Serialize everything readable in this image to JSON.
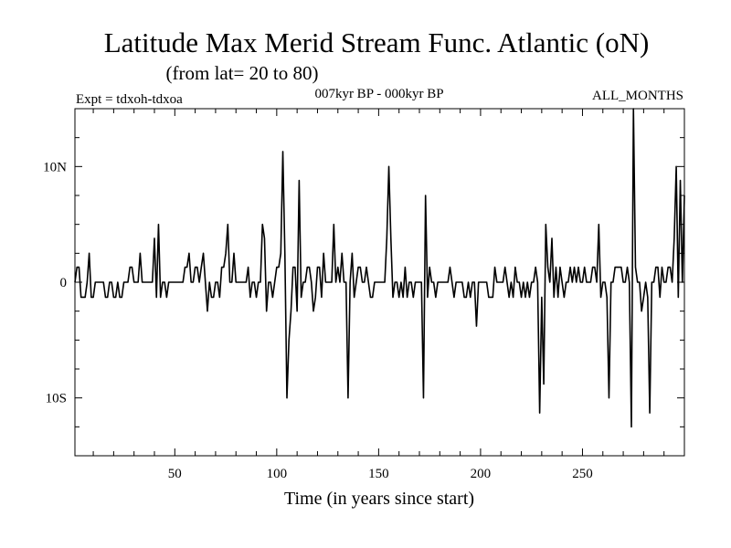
{
  "chart_data": {
    "type": "line",
    "title": "Latitude Max Merid Stream Func. Atlantic (oN)",
    "subtitle": "(from lat= 20 to 80)",
    "header_left": "Expt = tdxoh-tdxoa",
    "header_center": "007kyr BP - 000kyr BP",
    "header_right": "ALL_MONTHS",
    "xlabel": "Time (in years since start)",
    "ylabel": "",
    "xlim": [
      1,
      300
    ],
    "ylim": [
      -15,
      15
    ],
    "grid": false,
    "legend": "none",
    "xticks": [
      {
        "value": 50,
        "label": "50"
      },
      {
        "value": 100,
        "label": "100"
      },
      {
        "value": 150,
        "label": "150"
      },
      {
        "value": 200,
        "label": "200"
      },
      {
        "value": 250,
        "label": "250"
      }
    ],
    "yticks": [
      {
        "value": 10,
        "label": "10N"
      },
      {
        "value": 0,
        "label": "0"
      },
      {
        "value": -10,
        "label": "10S"
      }
    ],
    "series": [
      {
        "color": "#000000",
        "points": [
          [
            1,
            0
          ],
          [
            2,
            1.3
          ],
          [
            3,
            1.3
          ],
          [
            4,
            -1.3
          ],
          [
            5,
            -1.3
          ],
          [
            6,
            -1.3
          ],
          [
            7,
            0
          ],
          [
            8,
            2.5
          ],
          [
            9,
            -1.3
          ],
          [
            10,
            -1.3
          ],
          [
            11,
            0
          ],
          [
            12,
            0
          ],
          [
            13,
            0
          ],
          [
            14,
            0
          ],
          [
            15,
            0
          ],
          [
            16,
            -1.3
          ],
          [
            17,
            -1.3
          ],
          [
            18,
            0
          ],
          [
            19,
            0
          ],
          [
            20,
            -1.3
          ],
          [
            21,
            -1.3
          ],
          [
            22,
            0
          ],
          [
            23,
            -1.3
          ],
          [
            24,
            -1.3
          ],
          [
            25,
            0
          ],
          [
            26,
            0
          ],
          [
            27,
            0
          ],
          [
            28,
            1.3
          ],
          [
            29,
            1.3
          ],
          [
            30,
            0
          ],
          [
            31,
            0
          ],
          [
            32,
            0
          ],
          [
            33,
            2.5
          ],
          [
            34,
            0
          ],
          [
            35,
            0
          ],
          [
            36,
            0
          ],
          [
            37,
            0
          ],
          [
            38,
            0
          ],
          [
            39,
            0
          ],
          [
            40,
            3.8
          ],
          [
            41,
            -1.3
          ],
          [
            42,
            5
          ],
          [
            43,
            -1.3
          ],
          [
            44,
            0
          ],
          [
            45,
            0
          ],
          [
            46,
            -1.3
          ],
          [
            47,
            0
          ],
          [
            48,
            0
          ],
          [
            49,
            0
          ],
          [
            50,
            0
          ],
          [
            51,
            0
          ],
          [
            52,
            0
          ],
          [
            53,
            0
          ],
          [
            54,
            0
          ],
          [
            55,
            1.3
          ],
          [
            56,
            1.3
          ],
          [
            57,
            2.5
          ],
          [
            58,
            0
          ],
          [
            59,
            0
          ],
          [
            60,
            1.3
          ],
          [
            61,
            1.3
          ],
          [
            62,
            0
          ],
          [
            63,
            1.3
          ],
          [
            64,
            2.5
          ],
          [
            65,
            0
          ],
          [
            66,
            -2.5
          ],
          [
            67,
            0
          ],
          [
            68,
            -1.3
          ],
          [
            69,
            -1.3
          ],
          [
            70,
            0
          ],
          [
            71,
            0
          ],
          [
            72,
            -1.3
          ],
          [
            73,
            1.3
          ],
          [
            74,
            1.3
          ],
          [
            75,
            2.5
          ],
          [
            76,
            5
          ],
          [
            77,
            0
          ],
          [
            78,
            0
          ],
          [
            79,
            2.5
          ],
          [
            80,
            0
          ],
          [
            81,
            0
          ],
          [
            82,
            0
          ],
          [
            83,
            0
          ],
          [
            84,
            0
          ],
          [
            85,
            0
          ],
          [
            86,
            1.3
          ],
          [
            87,
            -1.3
          ],
          [
            88,
            0
          ],
          [
            89,
            0
          ],
          [
            90,
            -1.3
          ],
          [
            91,
            0
          ],
          [
            92,
            0
          ],
          [
            93,
            5
          ],
          [
            94,
            3.8
          ],
          [
            95,
            -2.5
          ],
          [
            96,
            0
          ],
          [
            97,
            0
          ],
          [
            98,
            -1.3
          ],
          [
            99,
            0
          ],
          [
            100,
            1.3
          ],
          [
            101,
            1.3
          ],
          [
            102,
            2.5
          ],
          [
            103,
            11.3
          ],
          [
            104,
            2.5
          ],
          [
            105,
            -10
          ],
          [
            106,
            -5
          ],
          [
            107,
            -2.5
          ],
          [
            108,
            1.3
          ],
          [
            109,
            1.3
          ],
          [
            110,
            -2.5
          ],
          [
            111,
            8.8
          ],
          [
            112,
            -1.3
          ],
          [
            113,
            0
          ],
          [
            114,
            0
          ],
          [
            115,
            1.3
          ],
          [
            116,
            1.3
          ],
          [
            117,
            0
          ],
          [
            118,
            -2.5
          ],
          [
            119,
            -1.3
          ],
          [
            120,
            1.3
          ],
          [
            121,
            1.3
          ],
          [
            122,
            -1.3
          ],
          [
            123,
            2.5
          ],
          [
            124,
            0
          ],
          [
            125,
            0
          ],
          [
            126,
            0
          ],
          [
            127,
            0
          ],
          [
            128,
            5
          ],
          [
            129,
            0
          ],
          [
            130,
            1.3
          ],
          [
            131,
            0
          ],
          [
            132,
            2.5
          ],
          [
            133,
            0
          ],
          [
            134,
            0
          ],
          [
            135,
            -10
          ],
          [
            136,
            0
          ],
          [
            137,
            2.5
          ],
          [
            138,
            -1.3
          ],
          [
            139,
            0
          ],
          [
            140,
            1.3
          ],
          [
            141,
            1.3
          ],
          [
            142,
            0
          ],
          [
            143,
            0
          ],
          [
            144,
            1.3
          ],
          [
            145,
            0
          ],
          [
            146,
            -1.3
          ],
          [
            147,
            -1.3
          ],
          [
            148,
            0
          ],
          [
            149,
            0
          ],
          [
            150,
            0
          ],
          [
            151,
            0
          ],
          [
            152,
            0
          ],
          [
            153,
            0
          ],
          [
            154,
            3.8
          ],
          [
            155,
            10
          ],
          [
            156,
            3.8
          ],
          [
            157,
            -1.3
          ],
          [
            158,
            0
          ],
          [
            159,
            0
          ],
          [
            160,
            -1.3
          ],
          [
            161,
            0
          ],
          [
            162,
            -1.3
          ],
          [
            163,
            1.3
          ],
          [
            164,
            -1.3
          ],
          [
            165,
            0
          ],
          [
            166,
            0
          ],
          [
            167,
            -1.3
          ],
          [
            168,
            0
          ],
          [
            169,
            0
          ],
          [
            170,
            0
          ],
          [
            171,
            0
          ],
          [
            172,
            -10
          ],
          [
            173,
            7.5
          ],
          [
            174,
            -1.3
          ],
          [
            175,
            1.3
          ],
          [
            176,
            0
          ],
          [
            177,
            0
          ],
          [
            178,
            -1.3
          ],
          [
            179,
            0
          ],
          [
            180,
            0
          ],
          [
            181,
            0
          ],
          [
            182,
            0
          ],
          [
            183,
            0
          ],
          [
            184,
            0
          ],
          [
            185,
            1.3
          ],
          [
            186,
            0
          ],
          [
            187,
            -1.3
          ],
          [
            188,
            0
          ],
          [
            189,
            0
          ],
          [
            190,
            0
          ],
          [
            191,
            0
          ],
          [
            192,
            -1.3
          ],
          [
            193,
            -1.3
          ],
          [
            194,
            0
          ],
          [
            195,
            -1.3
          ],
          [
            196,
            0
          ],
          [
            197,
            0
          ],
          [
            198,
            -3.8
          ],
          [
            199,
            0
          ],
          [
            200,
            0
          ],
          [
            201,
            0
          ],
          [
            202,
            0
          ],
          [
            203,
            0
          ],
          [
            204,
            -1.3
          ],
          [
            205,
            -1.3
          ],
          [
            206,
            -1.3
          ],
          [
            207,
            1.3
          ],
          [
            208,
            0
          ],
          [
            209,
            0
          ],
          [
            210,
            0
          ],
          [
            211,
            0
          ],
          [
            212,
            1.3
          ],
          [
            213,
            0
          ],
          [
            214,
            -1.3
          ],
          [
            215,
            0
          ],
          [
            216,
            -1.3
          ],
          [
            217,
            1.3
          ],
          [
            218,
            0
          ],
          [
            219,
            0
          ],
          [
            220,
            -1.3
          ],
          [
            221,
            0
          ],
          [
            222,
            -1.3
          ],
          [
            223,
            0
          ],
          [
            224,
            -1.3
          ],
          [
            225,
            0
          ],
          [
            226,
            0
          ],
          [
            227,
            1.3
          ],
          [
            228,
            0
          ],
          [
            229,
            -11.3
          ],
          [
            230,
            -1.3
          ],
          [
            231,
            -8.8
          ],
          [
            232,
            5
          ],
          [
            233,
            1.3
          ],
          [
            234,
            0
          ],
          [
            235,
            3.8
          ],
          [
            236,
            -1.3
          ],
          [
            237,
            1.3
          ],
          [
            238,
            -1.3
          ],
          [
            239,
            1.3
          ],
          [
            240,
            0
          ],
          [
            241,
            -1.3
          ],
          [
            242,
            0
          ],
          [
            243,
            0
          ],
          [
            244,
            1.3
          ],
          [
            245,
            0
          ],
          [
            246,
            1.3
          ],
          [
            247,
            0
          ],
          [
            248,
            1.3
          ],
          [
            249,
            0
          ],
          [
            250,
            0
          ],
          [
            251,
            1.3
          ],
          [
            252,
            0
          ],
          [
            253,
            0
          ],
          [
            254,
            0
          ],
          [
            255,
            1.3
          ],
          [
            256,
            1.3
          ],
          [
            257,
            0
          ],
          [
            258,
            5
          ],
          [
            259,
            -1.3
          ],
          [
            260,
            0
          ],
          [
            261,
            0
          ],
          [
            262,
            -1.3
          ],
          [
            263,
            -10
          ],
          [
            264,
            0
          ],
          [
            265,
            0
          ],
          [
            266,
            1.3
          ],
          [
            267,
            1.3
          ],
          [
            268,
            1.3
          ],
          [
            269,
            1.3
          ],
          [
            270,
            0
          ],
          [
            271,
            0
          ],
          [
            272,
            1.3
          ],
          [
            273,
            0
          ],
          [
            274,
            -12.5
          ],
          [
            275,
            15
          ],
          [
            276,
            1.3
          ],
          [
            277,
            0
          ],
          [
            278,
            0
          ],
          [
            279,
            -2.5
          ],
          [
            280,
            -1.3
          ],
          [
            281,
            0
          ],
          [
            282,
            -1.3
          ],
          [
            283,
            -11.3
          ],
          [
            284,
            0
          ],
          [
            285,
            0
          ],
          [
            286,
            1.3
          ],
          [
            287,
            1.3
          ],
          [
            288,
            -1.3
          ],
          [
            289,
            1.3
          ],
          [
            290,
            0
          ],
          [
            291,
            0
          ],
          [
            292,
            1.3
          ],
          [
            293,
            1.3
          ],
          [
            294,
            0
          ],
          [
            295,
            3.8
          ],
          [
            296,
            10
          ],
          [
            297,
            -1.3
          ],
          [
            298,
            8.8
          ],
          [
            299,
            0
          ],
          [
            300,
            7.5
          ]
        ]
      }
    ]
  }
}
